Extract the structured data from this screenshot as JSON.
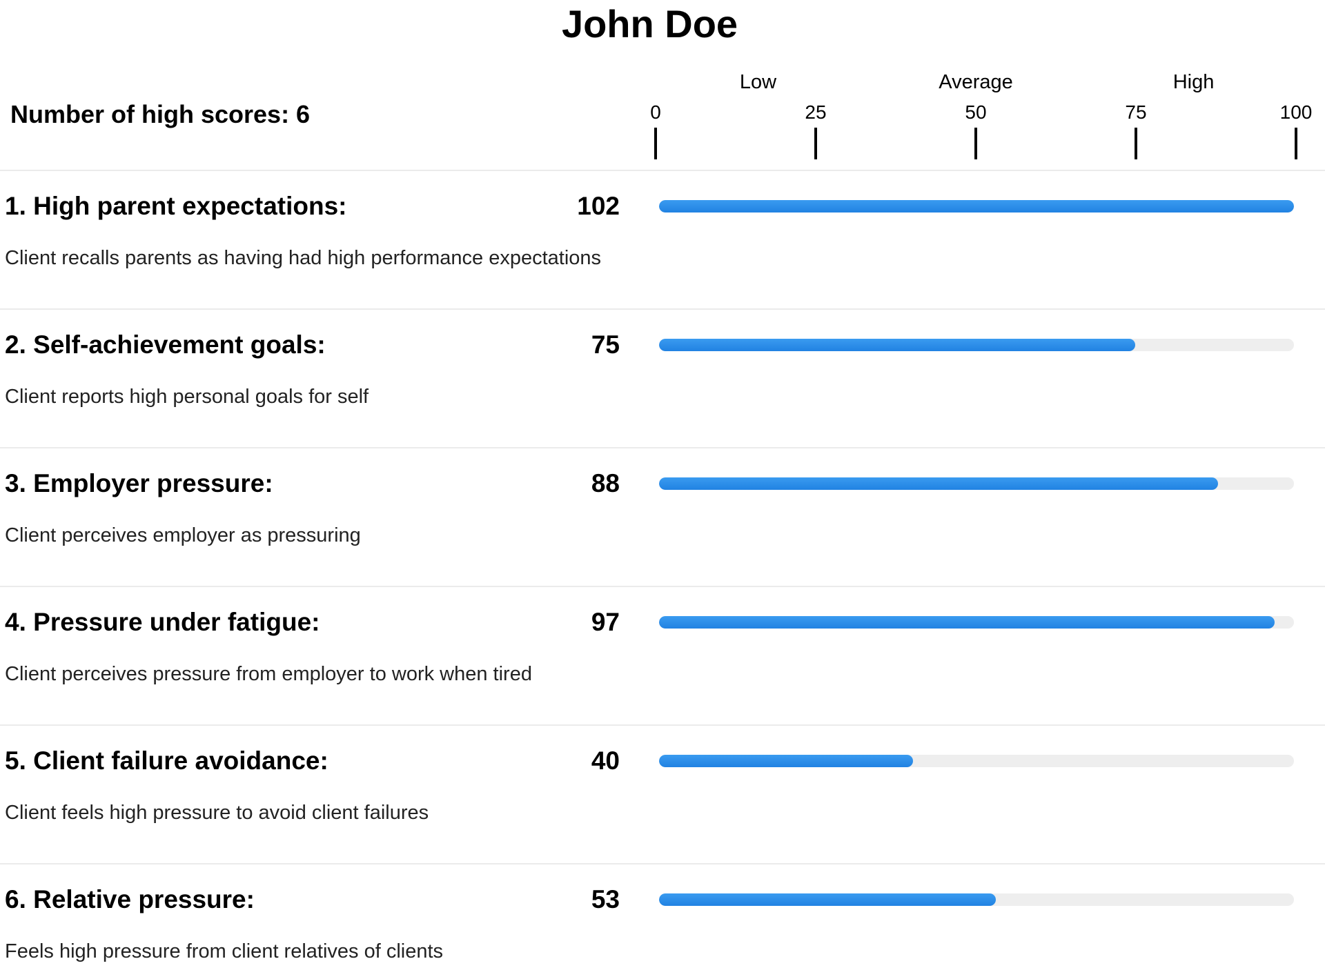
{
  "title": "John Doe",
  "summary": {
    "high_scores_label": "Number of high scores: 6"
  },
  "scale": {
    "min": 0,
    "max": 100,
    "levels": [
      {
        "label": "Low",
        "position": 16
      },
      {
        "label": "Average",
        "position": 50
      },
      {
        "label": "High",
        "position": 84
      }
    ],
    "ticks": [
      {
        "label": "0",
        "value": 0
      },
      {
        "label": "25",
        "value": 25
      },
      {
        "label": "50",
        "value": 50
      },
      {
        "label": "75",
        "value": 75
      },
      {
        "label": "100",
        "value": 100
      }
    ]
  },
  "colors": {
    "bar_fill": "#2a8ce8",
    "bar_track": "#eeeeee"
  },
  "chart_data": {
    "type": "bar",
    "orientation": "horizontal",
    "xlim": [
      0,
      100
    ],
    "categories": [
      "High parent expectations",
      "Self-achievement goals",
      "Employer pressure",
      "Pressure under fatigue",
      "Client failure avoidance",
      "Relative pressure"
    ],
    "values": [
      102,
      75,
      88,
      97,
      40,
      53
    ]
  },
  "items": [
    {
      "title": "1. High parent expectations:",
      "score": "102",
      "value": 102,
      "description": "Client recalls parents as having had high performance expectations"
    },
    {
      "title": "2. Self-achievement goals:",
      "score": "75",
      "value": 75,
      "description": "Client reports high personal goals for self"
    },
    {
      "title": "3. Employer pressure:",
      "score": "88",
      "value": 88,
      "description": "Client perceives employer as pressuring"
    },
    {
      "title": "4. Pressure under fatigue:",
      "score": "97",
      "value": 97,
      "description": "Client perceives pressure from employer to work when tired"
    },
    {
      "title": "5. Client failure avoidance:",
      "score": "40",
      "value": 40,
      "description": "Client feels high pressure to avoid client failures"
    },
    {
      "title": "6. Relative pressure:",
      "score": "53",
      "value": 53,
      "description": "Feels high pressure from client relatives of clients"
    }
  ]
}
